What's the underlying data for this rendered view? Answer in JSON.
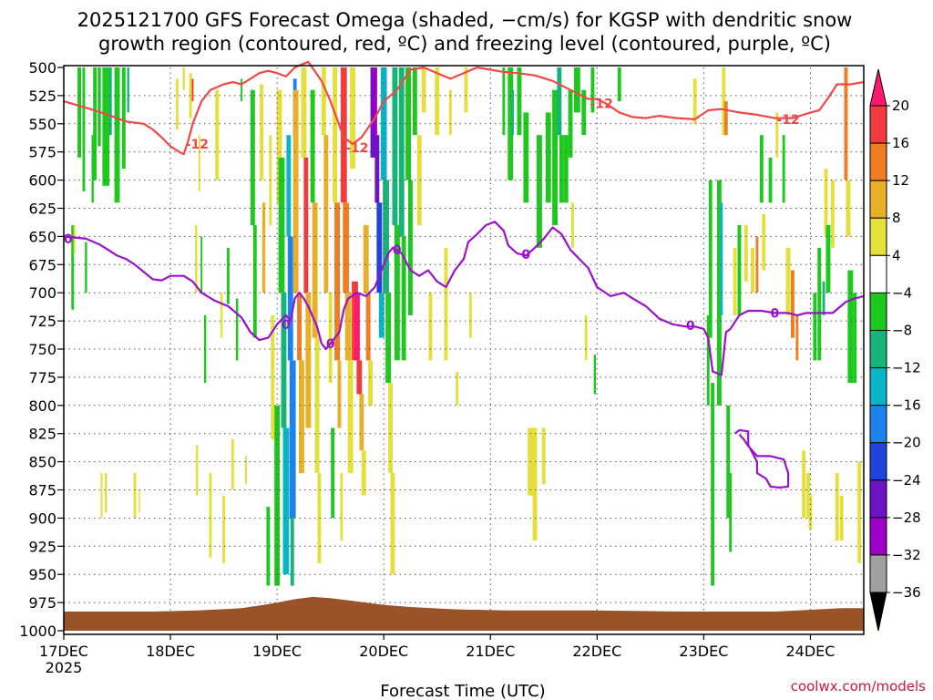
{
  "chart_data": {
    "type": "time-height",
    "title_line1": "2025121700 GFS Forecast Omega (shaded, −cm/s) for KGSP with dendritic snow",
    "title_line2": "growth region (contoured, red, ºC) and freezing level (contoured, purple, ºC)",
    "xlabel": "Forecast Time (UTC)",
    "credit": "coolwx.com/models",
    "x_range_hours": [
      0,
      180
    ],
    "x_ticks": [
      {
        "h": 0,
        "label": "17DEC",
        "sub": "2025"
      },
      {
        "h": 24,
        "label": "18DEC"
      },
      {
        "h": 48,
        "label": "19DEC"
      },
      {
        "h": 72,
        "label": "20DEC"
      },
      {
        "h": 96,
        "label": "21DEC"
      },
      {
        "h": 120,
        "label": "22DEC"
      },
      {
        "h": 144,
        "label": "23DEC"
      },
      {
        "h": 168,
        "label": "24DEC"
      }
    ],
    "y_range_hpa": [
      1000,
      500
    ],
    "y_ticks": [
      500,
      525,
      550,
      575,
      600,
      625,
      650,
      675,
      700,
      725,
      750,
      775,
      800,
      825,
      850,
      875,
      900,
      925,
      950,
      975,
      1000
    ],
    "colorbar": {
      "labels": [
        "20",
        "16",
        "12",
        "8",
        "4",
        "−4",
        "−8",
        "−12",
        "−16",
        "−20",
        "−24",
        "−28",
        "−32",
        "−36"
      ],
      "colors": [
        "#ff1a6e",
        "#f03c3c",
        "#ef7e22",
        "#e8b028",
        "#e4df3a",
        "#ffffff",
        "#1ec81e",
        "#16b478",
        "#0bb5c8",
        "#1e82ee",
        "#1e44dc",
        "#6e12c6",
        "#9c00c8",
        "#a0a0a0",
        "#000000"
      ]
    },
    "dendritic_contour": {
      "label": "-12",
      "color": "#f04848",
      "points": [
        [
          0,
          530
        ],
        [
          6,
          537
        ],
        [
          10,
          542
        ],
        [
          14,
          548
        ],
        [
          18,
          550
        ],
        [
          20,
          555
        ],
        [
          22,
          562
        ],
        [
          24,
          570
        ],
        [
          26,
          575
        ],
        [
          27,
          577
        ],
        [
          28,
          565
        ],
        [
          29,
          550
        ],
        [
          31,
          530
        ],
        [
          33,
          520
        ],
        [
          36,
          515
        ],
        [
          38,
          513
        ],
        [
          40,
          515
        ],
        [
          42,
          510
        ],
        [
          44,
          505
        ],
        [
          46,
          503
        ],
        [
          48,
          505
        ],
        [
          50,
          508
        ],
        [
          52,
          500
        ],
        [
          55,
          495
        ],
        [
          58,
          512
        ],
        [
          60,
          530
        ],
        [
          63,
          562
        ],
        [
          65,
          568
        ],
        [
          67,
          562
        ],
        [
          70,
          545
        ],
        [
          72,
          530
        ],
        [
          75,
          520
        ],
        [
          78,
          502
        ],
        [
          81,
          500
        ],
        [
          84,
          505
        ],
        [
          87,
          510
        ],
        [
          90,
          505
        ],
        [
          93,
          500
        ],
        [
          96,
          502
        ],
        [
          99,
          504
        ],
        [
          102,
          505
        ],
        [
          106,
          507
        ],
        [
          110,
          512
        ],
        [
          114,
          520
        ],
        [
          118,
          528
        ],
        [
          120,
          528
        ],
        [
          122,
          532
        ],
        [
          125,
          540
        ],
        [
          128,
          544
        ],
        [
          131,
          545
        ],
        [
          134,
          543
        ],
        [
          138,
          545
        ],
        [
          142,
          546
        ],
        [
          145,
          538
        ],
        [
          148,
          537
        ],
        [
          152,
          540
        ],
        [
          156,
          542
        ],
        [
          160,
          545
        ],
        [
          164,
          545
        ],
        [
          168,
          540
        ],
        [
          170,
          538
        ],
        [
          172,
          527
        ],
        [
          174,
          515
        ],
        [
          177,
          515
        ],
        [
          180,
          513
        ]
      ],
      "labels_at": [
        [
          30,
          568
        ],
        [
          66,
          571
        ],
        [
          121,
          532
        ],
        [
          163,
          546
        ]
      ]
    },
    "freezing_contour": {
      "label": "0",
      "color": "#9b12cc",
      "points": [
        [
          0,
          650
        ],
        [
          5,
          652
        ],
        [
          8,
          657
        ],
        [
          10,
          662
        ],
        [
          12,
          667
        ],
        [
          14,
          670
        ],
        [
          16,
          675
        ],
        [
          20,
          688
        ],
        [
          22,
          689
        ],
        [
          24,
          685
        ],
        [
          27,
          685
        ],
        [
          29,
          690
        ],
        [
          31,
          700
        ],
        [
          34,
          707
        ],
        [
          37,
          712
        ],
        [
          40,
          722
        ],
        [
          42,
          735
        ],
        [
          44,
          742
        ],
        [
          46,
          740
        ],
        [
          48,
          728
        ],
        [
          50,
          720
        ],
        [
          51,
          725
        ],
        [
          52,
          705
        ],
        [
          53,
          700
        ],
        [
          54,
          705
        ],
        [
          55,
          712
        ],
        [
          57,
          730
        ],
        [
          58,
          745
        ],
        [
          59,
          750
        ],
        [
          60,
          745
        ],
        [
          62,
          735
        ],
        [
          63,
          715
        ],
        [
          64,
          705
        ],
        [
          66,
          700
        ],
        [
          68,
          703
        ],
        [
          70,
          695
        ],
        [
          71,
          685
        ],
        [
          72,
          675
        ],
        [
          73,
          665
        ],
        [
          74,
          660
        ],
        [
          76,
          665
        ],
        [
          78,
          680
        ],
        [
          80,
          685
        ],
        [
          82,
          680
        ],
        [
          84,
          690
        ],
        [
          86,
          695
        ],
        [
          88,
          680
        ],
        [
          90,
          670
        ],
        [
          91,
          655
        ],
        [
          93,
          648
        ],
        [
          95,
          640
        ],
        [
          97,
          637
        ],
        [
          99,
          645
        ],
        [
          100,
          658
        ],
        [
          102,
          665
        ],
        [
          104,
          667
        ],
        [
          106,
          660
        ],
        [
          108,
          652
        ],
        [
          110,
          642
        ],
        [
          112,
          648
        ],
        [
          114,
          662
        ],
        [
          116,
          670
        ],
        [
          118,
          678
        ],
        [
          120,
          695
        ],
        [
          123,
          703
        ],
        [
          126,
          700
        ],
        [
          128,
          705
        ],
        [
          131,
          712
        ],
        [
          134,
          723
        ],
        [
          137,
          728
        ],
        [
          140,
          730
        ],
        [
          142,
          730
        ],
        [
          144,
          732
        ],
        [
          145,
          740
        ],
        [
          146,
          770
        ],
        [
          148,
          773
        ],
        [
          149,
          735
        ],
        [
          150,
          732
        ],
        [
          152,
          720
        ],
        [
          154,
          716
        ],
        [
          157,
          716
        ],
        [
          160,
          718
        ],
        [
          163,
          718
        ],
        [
          165,
          720
        ],
        [
          167,
          718
        ],
        [
          170,
          718
        ],
        [
          173,
          718
        ],
        [
          176,
          708
        ],
        [
          178,
          705
        ],
        [
          180,
          703
        ]
      ],
      "labels_at": [
        [
          1,
          652
        ],
        [
          50,
          728
        ],
        [
          60,
          745
        ],
        [
          75,
          662
        ],
        [
          104,
          666
        ],
        [
          141,
          729
        ],
        [
          160,
          718
        ]
      ],
      "loop": [
        [
          151,
          825
        ],
        [
          152,
          822
        ],
        [
          154,
          823
        ],
        [
          154,
          835
        ],
        [
          156,
          850
        ],
        [
          156,
          860
        ],
        [
          158,
          865
        ],
        [
          159,
          872
        ],
        [
          161,
          873
        ],
        [
          163,
          872
        ],
        [
          163,
          860
        ],
        [
          162,
          848
        ],
        [
          159,
          845
        ],
        [
          156,
          845
        ],
        [
          154,
          836
        ],
        [
          153,
          830
        ],
        [
          152,
          826
        ]
      ]
    }
  }
}
